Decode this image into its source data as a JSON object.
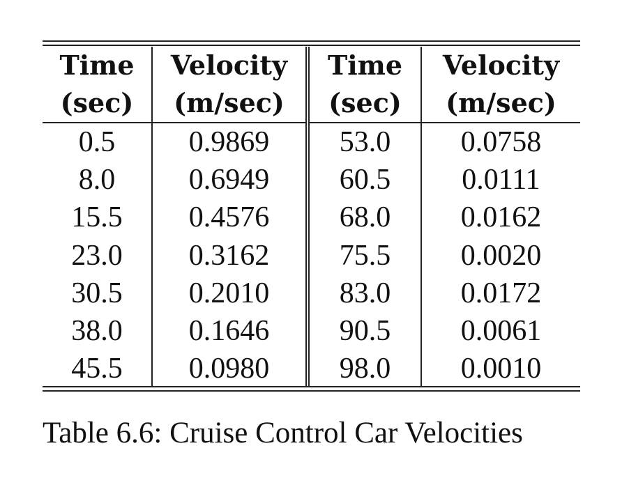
{
  "table": {
    "headers": [
      {
        "line1": "Time",
        "line2": "(sec)"
      },
      {
        "line1": "Velocity",
        "line2": "(m/sec)"
      },
      {
        "line1": "Time",
        "line2": "(sec)"
      },
      {
        "line1": "Velocity",
        "line2": "(m/sec)"
      }
    ],
    "rows": [
      [
        "0.5",
        "0.9869",
        "53.0",
        "0.0758"
      ],
      [
        "8.0",
        "0.6949",
        "60.5",
        "0.0111"
      ],
      [
        "15.5",
        "0.4576",
        "68.0",
        "0.0162"
      ],
      [
        "23.0",
        "0.3162",
        "75.5",
        "0.0020"
      ],
      [
        "30.5",
        "0.2010",
        "83.0",
        "0.0172"
      ],
      [
        "38.0",
        "0.1646",
        "90.5",
        "0.0061"
      ],
      [
        "45.5",
        "0.0980",
        "98.0",
        "0.0010"
      ]
    ]
  },
  "caption": "Table 6.6: Cruise Control Car Velocities"
}
